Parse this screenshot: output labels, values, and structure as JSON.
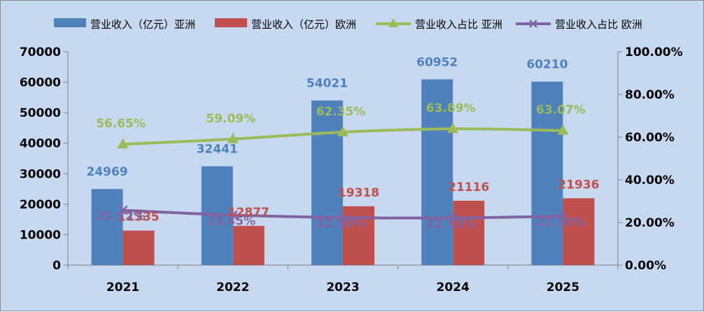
{
  "chart_data": {
    "type": "bar",
    "categories": [
      "2021",
      "2022",
      "2023",
      "2024",
      "2025"
    ],
    "series": [
      {
        "name": "营业收入（亿元）亚洲",
        "kind": "bar",
        "axis": "left",
        "color": "#4f81bd",
        "values": [
          24969,
          32441,
          54021,
          60952,
          60210
        ],
        "labels": [
          "24969",
          "32441",
          "54021",
          "60952",
          "60210"
        ]
      },
      {
        "name": "营业收入（亿元）欧洲",
        "kind": "bar",
        "axis": "left",
        "color": "#c0504d",
        "values": [
          11335,
          12877,
          19318,
          21116,
          21936
        ],
        "labels": [
          "11335",
          "12877",
          "19318",
          "21116",
          "21936"
        ]
      },
      {
        "name": "营业收入占比 亚洲",
        "kind": "line",
        "axis": "right",
        "marker": "triangle",
        "color": "#9bbb59",
        "values": [
          0.5665,
          0.5909,
          0.6235,
          0.6389,
          0.6307
        ],
        "labels": [
          "56.65%",
          "59.09%",
          "62.35%",
          "63.89%",
          "63.07%"
        ]
      },
      {
        "name": "营业收入占比 欧洲",
        "kind": "line",
        "axis": "right",
        "marker": "x",
        "color": "#8064a2",
        "values": [
          0.2572,
          0.2345,
          0.223,
          0.2213,
          0.2298
        ],
        "labels": [
          "25.72%",
          "23.45%",
          "22.30%",
          "22.13%",
          "22.98%"
        ]
      }
    ],
    "left_axis": {
      "ylim": [
        0,
        70000
      ],
      "ticks": [
        "0",
        "10000",
        "20000",
        "30000",
        "40000",
        "50000",
        "60000",
        "70000"
      ]
    },
    "right_axis": {
      "ylim": [
        0,
        1
      ],
      "ticks": [
        "0.00%",
        "20.00%",
        "40.00%",
        "60.00%",
        "80.00%",
        "100.00%"
      ]
    },
    "legend": "top",
    "grid": false,
    "background": "#c6d9f1"
  }
}
